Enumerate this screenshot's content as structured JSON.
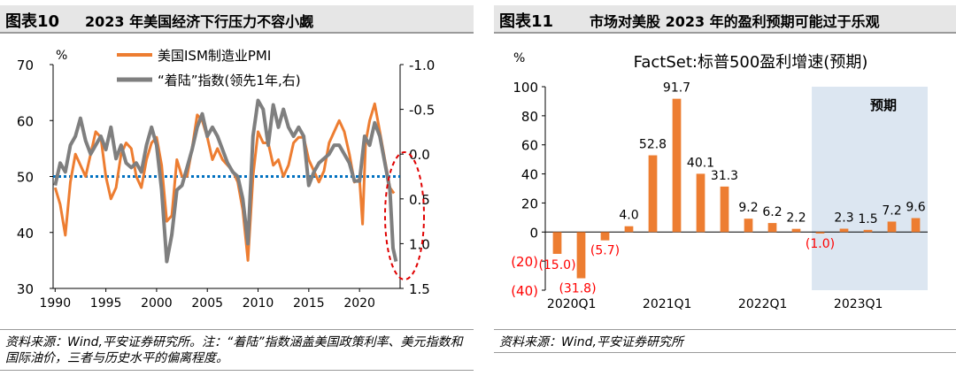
{
  "left": {
    "figure_number": "图表10",
    "title": "2023 年美国经济下行压力不容小觑",
    "source_note": "资料来源：Wind,平安证券研究所。注：“着陆”指数涵盖美国政策利率、美元指数和国际油价，三者与历史水平的偏离程度。",
    "colors": {
      "pmi": "#ed7d31",
      "landing": "#7f7f7f",
      "ref": "#0070c0",
      "highlight": "#e00000"
    }
  },
  "right": {
    "figure_number": "图表11",
    "title": "市场对美股 2023 年的盈利预期可能过于乐观",
    "source_note": "资料来源：Wind,平安证券研究所",
    "colors": {
      "bar": "#ed7d31",
      "forecast_band": "#dce6f1",
      "negative_label": "#ff0000"
    }
  },
  "chart_data": [
    {
      "type": "line",
      "left_unit": "%",
      "ylim_left": [
        30,
        70
      ],
      "yticks_left": [
        "70",
        "60",
        "50",
        "40",
        "30"
      ],
      "ylim_right": [
        1.5,
        -1.0
      ],
      "yticks_right": [
        "-1.0",
        "-0.5",
        "0.0",
        "0.5",
        "1.0",
        "1.5"
      ],
      "x_ticks": [
        "1990",
        "1995",
        "2000",
        "2005",
        "2010",
        "2015",
        "2020"
      ],
      "reference_line": 50,
      "series": [
        {
          "name": "美国ISM制造业PMI",
          "axis": "left",
          "x": [
            1990,
            1990.5,
            1991,
            1991.5,
            1992,
            1992.5,
            1993,
            1993.5,
            1994,
            1994.5,
            1995,
            1995.5,
            1996,
            1996.5,
            1997,
            1997.5,
            1998,
            1998.5,
            1999,
            1999.5,
            2000,
            2000.5,
            2001,
            2001.5,
            2002,
            2002.5,
            2003,
            2003.5,
            2004,
            2004.5,
            2005,
            2005.5,
            2006,
            2006.5,
            2007,
            2007.5,
            2008,
            2008.5,
            2009,
            2009.5,
            2010,
            2010.5,
            2011,
            2011.5,
            2012,
            2012.5,
            2013,
            2013.5,
            2014,
            2014.5,
            2015,
            2015.5,
            2016,
            2016.5,
            2017,
            2017.5,
            2018,
            2018.5,
            2019,
            2019.5,
            2020,
            2020.3,
            2020.6,
            2021,
            2021.5,
            2022,
            2022.5,
            2023,
            2023.4
          ],
          "values": [
            48,
            45,
            39.5,
            49,
            54,
            52,
            50,
            54,
            58,
            57,
            50,
            46,
            48,
            54,
            56,
            55,
            50,
            48,
            53,
            56,
            57,
            52,
            42,
            43,
            53,
            50,
            50,
            55,
            61,
            60,
            57,
            53,
            55,
            53,
            52,
            51,
            49,
            44,
            35,
            50,
            58,
            56,
            56,
            52,
            53,
            50,
            52,
            56,
            57,
            57,
            53,
            51,
            49,
            51,
            56,
            58,
            60,
            58,
            54,
            49,
            49.5,
            41.5,
            56,
            60,
            63,
            58,
            53,
            48,
            47
          ]
        },
        {
          "name": "“着陆”指数(领先1年,右)",
          "axis": "right",
          "x": [
            1990,
            1990.5,
            1991,
            1991.5,
            1992,
            1992.5,
            1993,
            1993.5,
            1994,
            1994.5,
            1995,
            1995.5,
            1996,
            1996.5,
            1997,
            1997.5,
            1998,
            1998.5,
            1999,
            1999.5,
            2000,
            2000.5,
            2001,
            2001.5,
            2002,
            2002.5,
            2003,
            2003.5,
            2004,
            2004.5,
            2005,
            2005.5,
            2006,
            2006.5,
            2007,
            2007.5,
            2008,
            2008.5,
            2009,
            2009.5,
            2010,
            2010.5,
            2011,
            2011.5,
            2012,
            2012.5,
            2013,
            2013.5,
            2014,
            2014.5,
            2015,
            2015.5,
            2016,
            2016.5,
            2017,
            2017.5,
            2018,
            2018.5,
            2019,
            2019.5,
            2020,
            2020.5,
            2021,
            2021.5,
            2022,
            2022.5,
            2023,
            2023.3,
            2023.6
          ],
          "values": [
            0.35,
            0.1,
            0.2,
            -0.1,
            -0.2,
            -0.4,
            -0.15,
            0.0,
            -0.1,
            -0.2,
            -0.05,
            -0.3,
            0.05,
            -0.1,
            0.1,
            0.15,
            0.1,
            0.2,
            -0.1,
            -0.3,
            -0.1,
            0.4,
            1.2,
            0.9,
            0.4,
            0.35,
            0.15,
            -0.05,
            -0.3,
            -0.45,
            -0.2,
            -0.3,
            -0.2,
            -0.05,
            0.1,
            0.2,
            0.25,
            0.5,
            1.0,
            -0.2,
            -0.6,
            -0.5,
            -0.1,
            -0.55,
            -0.3,
            -0.5,
            -0.3,
            -0.2,
            -0.3,
            -0.2,
            0.35,
            0.2,
            0.1,
            0.05,
            0.0,
            -0.1,
            -0.1,
            0.0,
            0.1,
            0.3,
            0.3,
            -0.2,
            -0.1,
            -0.35,
            -0.2,
            0.1,
            0.4,
            1.05,
            1.2
          ]
        }
      ]
    },
    {
      "type": "bar",
      "title": "FactSet:标普500盈利增速(预期)",
      "unit": "%",
      "ylim": [
        -40,
        100
      ],
      "yticks": [
        "100",
        "80",
        "60",
        "40",
        "20",
        "0",
        "(20)",
        "(40)"
      ],
      "categories": [
        "2020Q1",
        "2020Q2",
        "2020Q3",
        "2020Q4",
        "2021Q1",
        "2021Q2",
        "2021Q3",
        "2021Q4",
        "2022Q1",
        "2022Q2",
        "2022Q3",
        "2022Q4",
        "2023Q1",
        "2023Q2",
        "2023Q3",
        "2023Q4"
      ],
      "x_tick_labels": [
        "2020Q1",
        "2021Q1",
        "2022Q1",
        "2023Q1"
      ],
      "values": [
        -15.0,
        -31.8,
        -5.7,
        4.0,
        52.8,
        91.7,
        40.1,
        31.3,
        9.2,
        6.2,
        2.2,
        -1.0,
        2.3,
        1.5,
        7.2,
        9.6
      ],
      "data_labels": [
        "(15.0)",
        "(31.8)",
        "(5.7)",
        "4.0",
        "52.8",
        "91.7",
        "40.1",
        "31.3",
        "9.2",
        "6.2",
        "2.2",
        "(1.0)",
        "2.3",
        "1.5",
        "7.2",
        "9.6"
      ],
      "forecast_label": "预期",
      "forecast_start": "2022Q4"
    }
  ]
}
